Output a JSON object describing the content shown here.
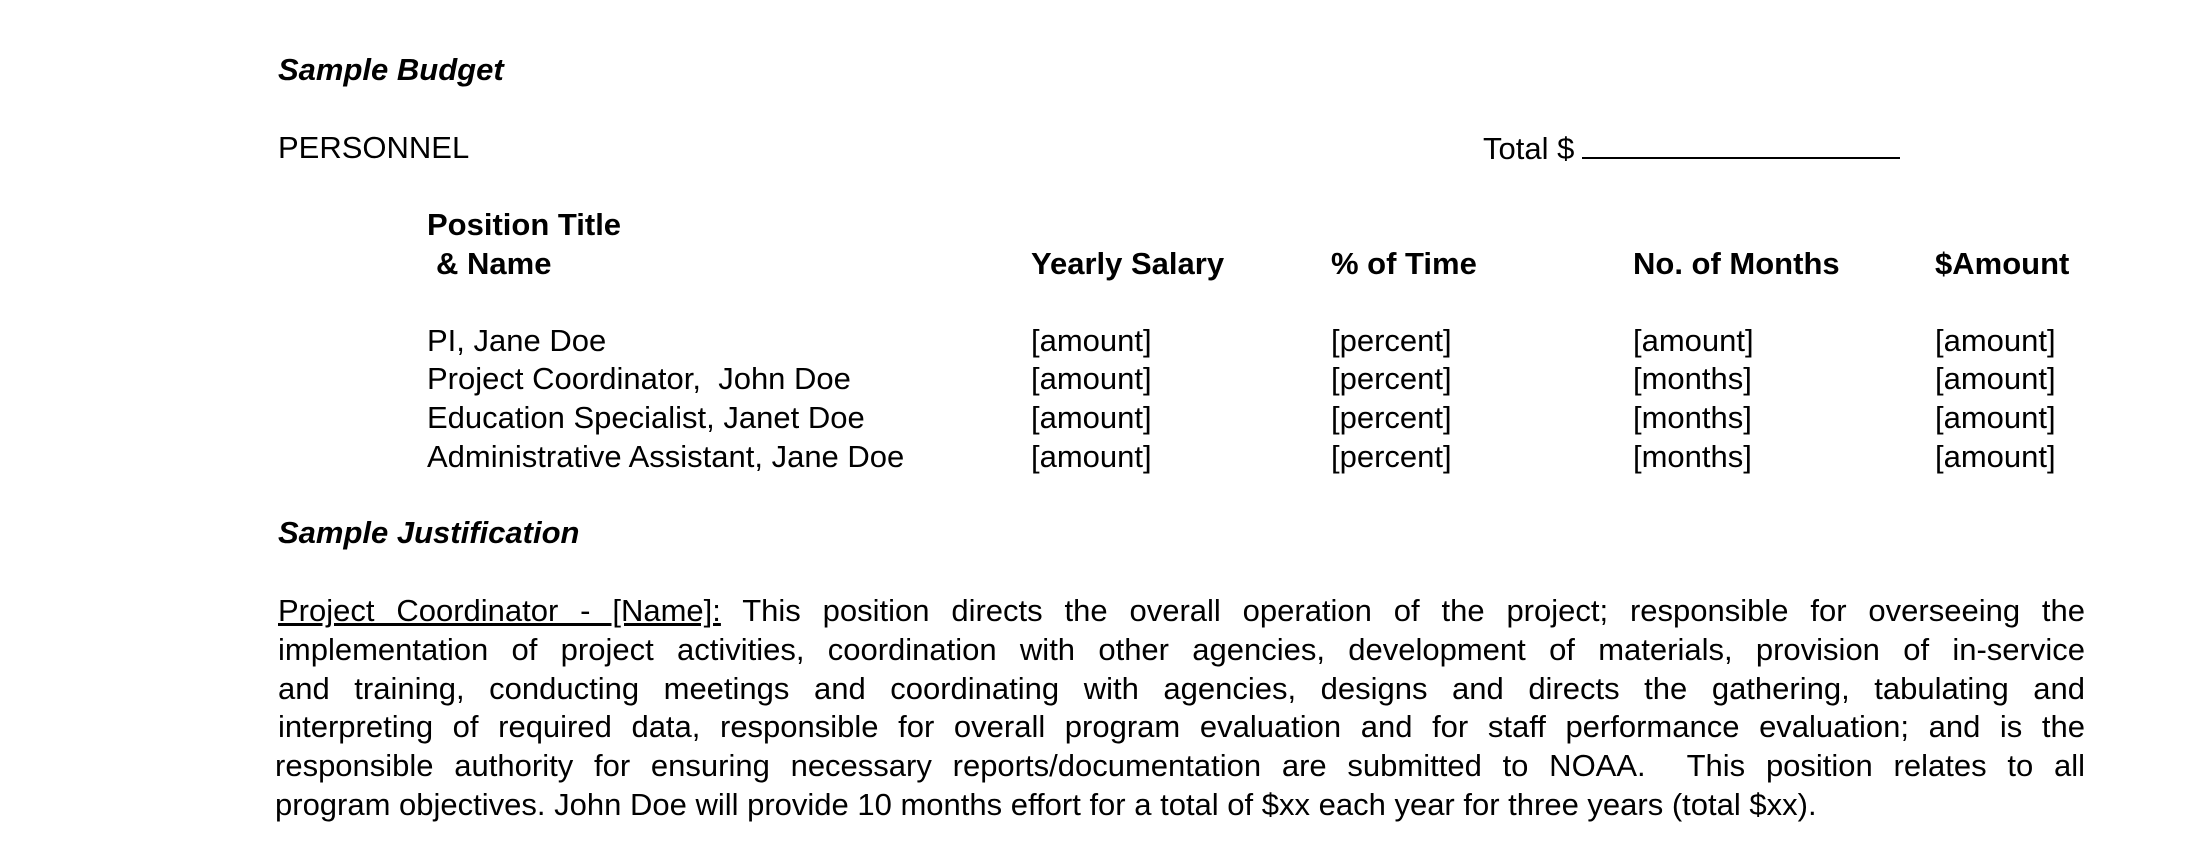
{
  "title": "Sample Budget",
  "personnel": {
    "label": "PERSONNEL",
    "total_label": "Total $",
    "total_value": ""
  },
  "table": {
    "headers": {
      "position_line1": "Position Title",
      "position_line2": "& Name",
      "salary": "Yearly Salary",
      "time": "% of Time",
      "months": "No. of Months",
      "amount": "$Amount"
    },
    "rows": [
      {
        "name": "PI, Jane Doe",
        "salary": "[amount]",
        "time": "[percent]",
        "months": "[amount]",
        "amount": "[amount]"
      },
      {
        "name": "Project Coordinator,  John Doe",
        "salary": "[amount]",
        "time": "[percent]",
        "months": "[months]",
        "amount": "[amount]"
      },
      {
        "name": "Education Specialist, Janet Doe",
        "salary": "[amount]",
        "time": "[percent]",
        "months": "[months]",
        "amount": "[amount]"
      },
      {
        "name": "Administrative Assistant, Jane Doe",
        "salary": "[amount]",
        "time": "[percent]",
        "months": "[months]",
        "amount": "[amount]"
      }
    ]
  },
  "justification": {
    "heading": "Sample Justification",
    "lead": "Project Coordinator - [Name]:",
    "lines": [
      "This position directs the overall operation of the project; responsible for overseeing the",
      "implementation of project activities, coordination with other agencies, development of materials, provision of in-service",
      "and training, conducting meetings and coordinating with agencies, designs and directs the gathering, tabulating and",
      "interpreting of required data, responsible for overall program evaluation and for staff performance evaluation; and is the",
      "responsible authority for ensuring necessary reports/documentation are submitted to NOAA.  This position relates to all",
      "program objectives. John Doe will provide 10 months effort for a total of $xx each year for three years (total $xx)."
    ]
  }
}
